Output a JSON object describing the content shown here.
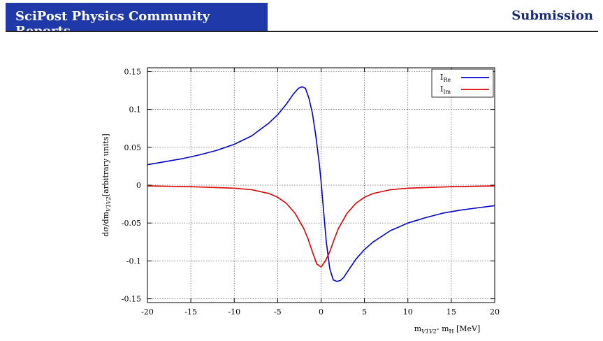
{
  "header": {
    "journal": "SciPost Physics Community Reports",
    "section": "Submission"
  },
  "colors": {
    "header_bg": "#1f3aa8",
    "re": "#0000cc",
    "im": "#dd0000"
  },
  "chart_data": {
    "type": "line",
    "ylabel": "dσ/dm",
    "ylabel_sub": "V1V2",
    "ylabel_tail": "[arbitrary units]",
    "xlabel": "m",
    "xlabel_sub": "V1V2",
    "xlabel_mid": "- m",
    "xlabel_sub2": "H",
    "xlabel_tail": " [MeV]",
    "xlim": [
      -20,
      20
    ],
    "ylim": [
      -0.155,
      0.155
    ],
    "xticks": [
      "-20",
      "-15",
      "-10",
      "-5",
      "0",
      "5",
      "10",
      "15",
      "20"
    ],
    "yticks": [
      "0.15",
      "0.1",
      "0.05",
      "0",
      "-0.05",
      "-0.1",
      "-0.15"
    ],
    "grid": true,
    "legend_position": "top-right",
    "series": [
      {
        "name": "I",
        "sub": "Re",
        "color": "#0000cc",
        "x": [
          -20,
          -18,
          -16,
          -14,
          -12,
          -10,
          -8,
          -6,
          -5,
          -4,
          -3.2,
          -2.6,
          -2.2,
          -1.8,
          -1.4,
          -1,
          -0.6,
          -0.2,
          0,
          0.3,
          0.6,
          1,
          1.4,
          1.8,
          2.2,
          2.6,
          3,
          4,
          5,
          6,
          8,
          10,
          12,
          14,
          16,
          18,
          20
        ],
        "y": [
          0.027,
          0.031,
          0.035,
          0.04,
          0.046,
          0.054,
          0.065,
          0.082,
          0.093,
          0.107,
          0.12,
          0.128,
          0.13,
          0.128,
          0.115,
          0.095,
          0.065,
          0.028,
          0.005,
          -0.035,
          -0.075,
          -0.11,
          -0.125,
          -0.127,
          -0.126,
          -0.122,
          -0.115,
          -0.098,
          -0.085,
          -0.075,
          -0.06,
          -0.05,
          -0.043,
          -0.037,
          -0.033,
          -0.03,
          -0.027
        ]
      },
      {
        "name": "I",
        "sub": "Im",
        "color": "#dd0000",
        "x": [
          -20,
          -15,
          -10,
          -8,
          -6,
          -5,
          -4,
          -3,
          -2,
          -1.5,
          -1,
          -0.5,
          0,
          0.5,
          1,
          1.5,
          2,
          3,
          4,
          5,
          6,
          8,
          10,
          15,
          20
        ],
        "y": [
          -0.001,
          -0.002,
          -0.004,
          -0.006,
          -0.011,
          -0.016,
          -0.024,
          -0.037,
          -0.057,
          -0.071,
          -0.088,
          -0.104,
          -0.108,
          -0.1,
          -0.088,
          -0.072,
          -0.057,
          -0.037,
          -0.024,
          -0.016,
          -0.011,
          -0.006,
          -0.004,
          -0.002,
          -0.001
        ]
      }
    ]
  }
}
